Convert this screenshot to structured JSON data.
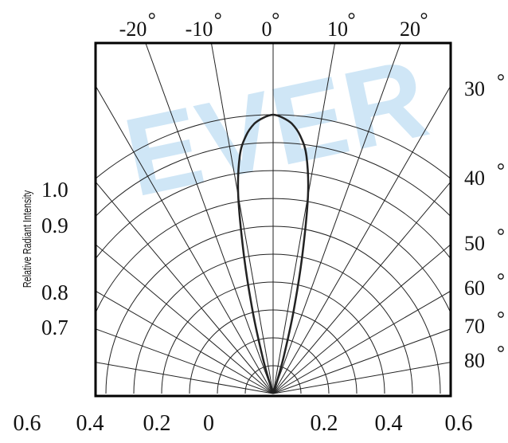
{
  "watermark": "EVER",
  "chart_data": {
    "type": "polar-radiation-pattern",
    "ylabel": "Relative Radiant Intensity",
    "top_angle_labels": [
      "-20",
      "-10",
      "0",
      "10",
      "20"
    ],
    "right_angle_labels": [
      "30",
      "40",
      "50",
      "60",
      "70",
      "80"
    ],
    "left_intensity_labels": [
      "1.0",
      "0.9",
      "0.8",
      "0.7"
    ],
    "bottom_labels": [
      "0.6",
      "0.4",
      "0.2",
      "0",
      "0.2",
      "0.4",
      "0.6"
    ],
    "grid_radial_angles_deg": [
      -80,
      -70,
      -60,
      -50,
      -40,
      -30,
      -20,
      -10,
      0,
      10,
      20,
      30,
      40,
      50,
      60,
      70,
      80
    ],
    "grid_circle_count": 10,
    "series": [
      {
        "angle_deg": [
          0,
          2,
          4,
          6,
          8,
          10,
          12,
          14,
          16,
          18,
          20
        ],
        "relative_intensity": [
          1.0,
          0.99,
          0.97,
          0.93,
          0.86,
          0.72,
          0.5,
          0.3,
          0.14,
          0.04,
          0.0
        ]
      }
    ],
    "colors": {
      "curve": "#222222",
      "grid": "#222222",
      "frame": "#000000",
      "watermark": "#cfe6f6"
    }
  }
}
